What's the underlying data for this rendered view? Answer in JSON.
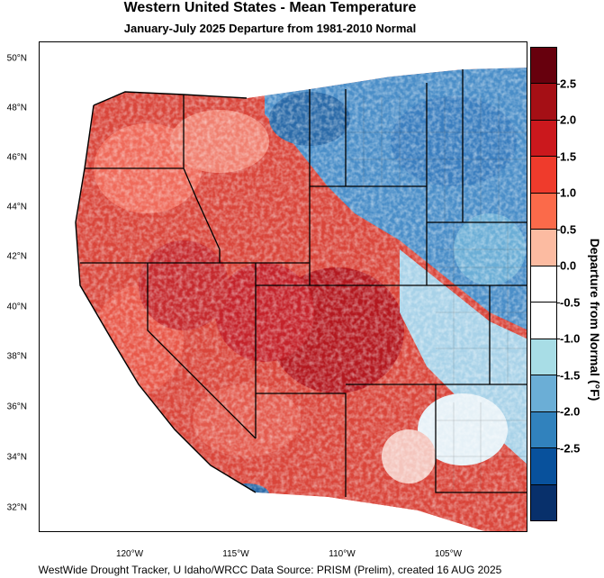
{
  "title": "Western United States - Mean Temperature",
  "subtitle": "January-July 2025  Departure from 1981-2010 Normal",
  "footer": "WestWide Drought Tracker, U Idaho/WRCC Data Source: PRISM (Prelim), created 16 AUG 2025",
  "lat_labels": [
    "50°N",
    "48°N",
    "46°N",
    "44°N",
    "42°N",
    "40°N",
    "38°N",
    "36°N",
    "34°N",
    "32°N"
  ],
  "lon_labels": [
    "120°W",
    "115°W",
    "110°W",
    "105°W"
  ],
  "colorbar": {
    "title": "Departure from Normal (°F)",
    "ticks": [
      "2.5",
      "2.0",
      "1.5",
      "1.0",
      "0.5",
      "0.0",
      "-0.5",
      "-1.0",
      "-1.5",
      "-2.0",
      "-2.5"
    ],
    "colors": [
      "#67000d",
      "#a50f15",
      "#cb181d",
      "#ef3b2c",
      "#fb6a4a",
      "#fcbba1",
      "#ffffff",
      "#ffffff",
      "#a8dde6",
      "#6baed6",
      "#3182bd",
      "#08519c",
      "#08306b"
    ]
  },
  "colors": {
    "warm_dark": "#a50f15",
    "warm": "#cb181d",
    "warm_light": "#fc9272",
    "cool": "#3182bd",
    "cool_light": "#9ecae1",
    "neutral": "#ffffff"
  }
}
